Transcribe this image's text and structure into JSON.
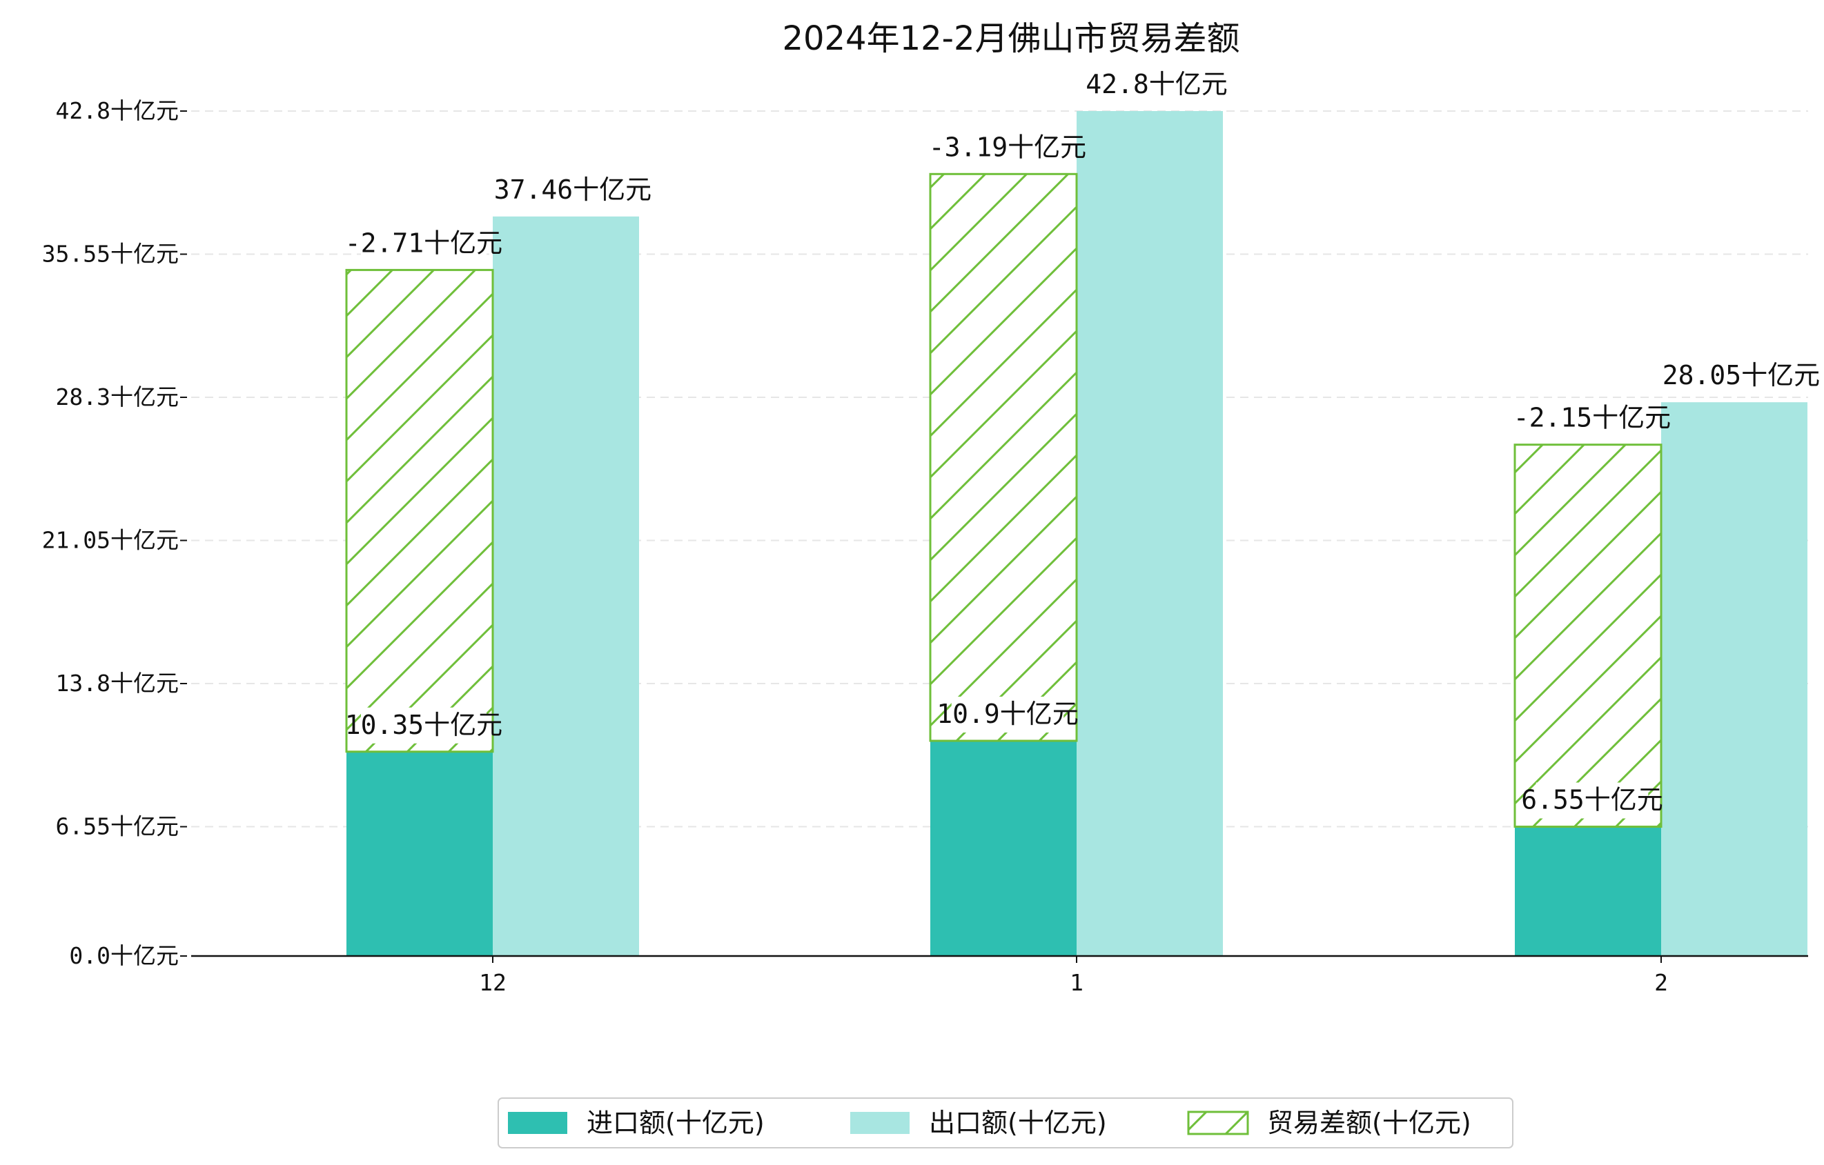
{
  "chart_data": {
    "type": "bar",
    "title": "2024年12-2月佛山市贸易差额",
    "unit_suffix": "十亿元",
    "categories": [
      "12",
      "1",
      "2"
    ],
    "ylim": [
      0,
      42.8
    ],
    "yticks": [
      0.0,
      6.55,
      13.8,
      21.05,
      28.3,
      35.55,
      42.8
    ],
    "ytick_labels": [
      "0.0十亿元",
      "6.55十亿元",
      "13.8十亿元",
      "21.05十亿元",
      "28.3十亿元",
      "35.55十亿元",
      "42.8十亿元"
    ],
    "grid": "horizontal dashed",
    "legend_position": "bottom-center",
    "series": [
      {
        "name": "进口额(十亿元)",
        "values": [
          10.35,
          10.9,
          6.55
        ],
        "labels": [
          "10.35十亿元",
          "10.9十亿元",
          "6.55十亿元"
        ],
        "color": "#2ebfb1"
      },
      {
        "name": "出口额(十亿元)",
        "values": [
          37.46,
          42.8,
          28.05
        ],
        "labels": [
          "37.46十亿元",
          "42.8十亿元",
          "28.05十亿元"
        ],
        "color": "#a8e6e1"
      },
      {
        "name": "贸易差额(十亿元)",
        "values": [
          -2.71,
          -3.19,
          -2.15
        ],
        "labels": [
          "-2.71十亿元",
          "-3.19十亿元",
          "-2.15十亿元"
        ],
        "color": "#6fbf3a",
        "style": "hatched"
      }
    ]
  }
}
